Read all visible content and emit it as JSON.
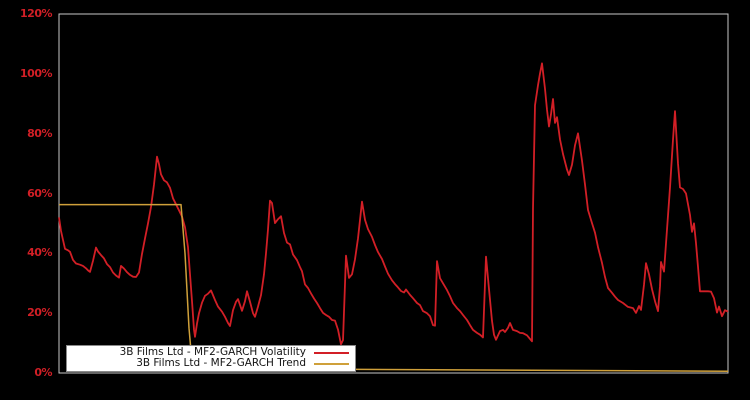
{
  "figure": {
    "background_color": "#000000",
    "plot_border_color": "#c8c8c8"
  },
  "y_axis": {
    "label_color": "#d21f26",
    "tick_labels": [
      "0%",
      "20%",
      "40%",
      "60%",
      "80%",
      "100%",
      "120%"
    ],
    "tick_values": [
      0,
      20,
      40,
      60,
      80,
      100,
      120
    ]
  },
  "legend": {
    "items": [
      {
        "label": "3B Films Ltd - MF2-GARCH Volatility",
        "color": "#d21f26"
      },
      {
        "label": "3B Films Ltd - MF2-GARCH Trend",
        "color": "#cfa03a"
      }
    ]
  },
  "chart_data": {
    "type": "line",
    "title": "",
    "xlabel": "",
    "ylabel": "",
    "ylim": [
      0,
      120
    ],
    "y_unit": "percent",
    "x_axis_labels_visible": false,
    "grid": false,
    "legend_position": "bottom-left",
    "x_units": "pixel position along unlabeled time axis (59 = left edge, 728 = right edge)",
    "series": [
      {
        "name": "3B Films Ltd - MF2-GARCH Volatility",
        "color": "#d21f26",
        "points": [
          [
            59,
            52
          ],
          [
            61,
            47.5
          ],
          [
            63,
            44.5
          ],
          [
            65,
            41.5
          ],
          [
            68,
            41
          ],
          [
            70,
            40.5
          ],
          [
            73,
            37.8
          ],
          [
            76,
            36.6
          ],
          [
            80,
            36.2
          ],
          [
            83,
            35.8
          ],
          [
            86,
            35
          ],
          [
            88,
            34.3
          ],
          [
            90,
            33.8
          ],
          [
            93,
            37.5
          ],
          [
            96,
            41.9
          ],
          [
            98,
            40.6
          ],
          [
            101,
            39.4
          ],
          [
            104,
            38.3
          ],
          [
            107,
            36.4
          ],
          [
            110,
            35.4
          ],
          [
            113,
            33.6
          ],
          [
            116,
            32.6
          ],
          [
            119,
            31.9
          ],
          [
            121,
            35.8
          ],
          [
            124,
            34.9
          ],
          [
            127,
            33.7
          ],
          [
            130,
            32.8
          ],
          [
            133,
            32.2
          ],
          [
            136,
            32.1
          ],
          [
            139,
            33.6
          ],
          [
            142,
            39.8
          ],
          [
            145,
            45
          ],
          [
            148,
            50
          ],
          [
            151,
            55.5
          ],
          [
            154,
            63
          ],
          [
            157,
            72.3
          ],
          [
            159,
            69.8
          ],
          [
            161,
            66.4
          ],
          [
            164,
            64.4
          ],
          [
            167,
            63.7
          ],
          [
            170,
            61.9
          ],
          [
            173,
            58.4
          ],
          [
            176,
            56.4
          ],
          [
            179,
            54.4
          ],
          [
            182,
            52.3
          ],
          [
            185,
            48.7
          ],
          [
            188,
            42
          ],
          [
            190,
            33
          ],
          [
            192,
            24
          ],
          [
            194,
            14.5
          ],
          [
            195,
            12.1
          ],
          [
            197,
            16.5
          ],
          [
            199,
            20
          ],
          [
            202,
            23.5
          ],
          [
            205,
            25.8
          ],
          [
            208,
            26.5
          ],
          [
            211,
            27.6
          ],
          [
            215,
            24.4
          ],
          [
            218,
            22.2
          ],
          [
            222,
            20.5
          ],
          [
            225,
            18.8
          ],
          [
            228,
            16.7
          ],
          [
            230,
            15.7
          ],
          [
            233,
            21
          ],
          [
            236,
            23.8
          ],
          [
            238,
            24.7
          ],
          [
            242,
            20.8
          ],
          [
            245,
            24
          ],
          [
            247,
            27.3
          ],
          [
            250,
            23.8
          ],
          [
            253,
            20
          ],
          [
            255,
            18.8
          ],
          [
            258,
            22.2
          ],
          [
            261,
            26
          ],
          [
            264,
            33
          ],
          [
            266,
            40
          ],
          [
            268,
            48
          ],
          [
            270,
            57.6
          ],
          [
            272,
            56.8
          ],
          [
            275,
            50.1
          ],
          [
            278,
            51.4
          ],
          [
            281,
            52.4
          ],
          [
            284,
            46.8
          ],
          [
            287,
            43.6
          ],
          [
            290,
            43
          ],
          [
            293,
            39.6
          ],
          [
            297,
            37.7
          ],
          [
            300,
            35.4
          ],
          [
            302,
            34
          ],
          [
            305,
            29.6
          ],
          [
            308,
            28.4
          ],
          [
            311,
            26.6
          ],
          [
            314,
            24.9
          ],
          [
            317,
            23.4
          ],
          [
            320,
            21.7
          ],
          [
            323,
            20.1
          ],
          [
            326,
            19.4
          ],
          [
            329,
            18.8
          ],
          [
            332,
            17.7
          ],
          [
            335,
            17.5
          ],
          [
            338,
            14.5
          ],
          [
            341,
            9.6
          ],
          [
            343,
            11
          ],
          [
            346,
            39.2
          ],
          [
            349,
            31.8
          ],
          [
            352,
            33
          ],
          [
            355,
            38
          ],
          [
            358,
            45
          ],
          [
            362,
            57.3
          ],
          [
            365,
            51.2
          ],
          [
            368,
            48.1
          ],
          [
            372,
            45.5
          ],
          [
            375,
            42.8
          ],
          [
            378,
            40.4
          ],
          [
            382,
            38.1
          ],
          [
            385,
            35.6
          ],
          [
            388,
            33.2
          ],
          [
            392,
            31
          ],
          [
            395,
            29.7
          ],
          [
            398,
            28.6
          ],
          [
            401,
            27.4
          ],
          [
            404,
            26.9
          ],
          [
            406,
            27.9
          ],
          [
            410,
            26.1
          ],
          [
            413,
            25
          ],
          [
            417,
            23.4
          ],
          [
            420,
            22.7
          ],
          [
            423,
            20.7
          ],
          [
            427,
            20
          ],
          [
            430,
            19
          ],
          [
            433,
            16
          ],
          [
            435,
            15.8
          ],
          [
            437,
            37.4
          ],
          [
            440,
            31.7
          ],
          [
            443,
            30
          ],
          [
            447,
            27.7
          ],
          [
            450,
            25.7
          ],
          [
            453,
            23.4
          ],
          [
            457,
            21.7
          ],
          [
            460,
            20.7
          ],
          [
            463,
            19.4
          ],
          [
            467,
            17.7
          ],
          [
            470,
            16
          ],
          [
            473,
            14.4
          ],
          [
            477,
            13.4
          ],
          [
            480,
            12.8
          ],
          [
            483,
            11.9
          ],
          [
            486,
            38.9
          ],
          [
            489,
            28
          ],
          [
            492,
            17.4
          ],
          [
            494,
            12.8
          ],
          [
            496,
            11.1
          ],
          [
            500,
            14
          ],
          [
            503,
            14.4
          ],
          [
            505,
            13.7
          ],
          [
            508,
            15.1
          ],
          [
            510,
            16.7
          ],
          [
            513,
            14.4
          ],
          [
            517,
            14
          ],
          [
            520,
            13.4
          ],
          [
            523,
            13.3
          ],
          [
            527,
            12.6
          ],
          [
            530,
            11.4
          ],
          [
            532,
            10.6
          ],
          [
            533,
            55
          ],
          [
            535,
            89.5
          ],
          [
            538,
            96.2
          ],
          [
            540,
            100.1
          ],
          [
            542,
            103.5
          ],
          [
            545,
            95
          ],
          [
            547,
            88
          ],
          [
            549,
            82.4
          ],
          [
            551,
            86.5
          ],
          [
            553,
            91.6
          ],
          [
            555,
            83.6
          ],
          [
            557,
            85.5
          ],
          [
            560,
            78.1
          ],
          [
            563,
            73.2
          ],
          [
            567,
            68
          ],
          [
            569,
            66.2
          ],
          [
            572,
            69.6
          ],
          [
            575,
            76.1
          ],
          [
            578,
            80.1
          ],
          [
            582,
            71
          ],
          [
            585,
            63
          ],
          [
            588,
            54.5
          ],
          [
            592,
            50.1
          ],
          [
            595,
            46.9
          ],
          [
            598,
            42.1
          ],
          [
            602,
            36.8
          ],
          [
            605,
            32.1
          ],
          [
            608,
            28.4
          ],
          [
            612,
            26.8
          ],
          [
            615,
            25.5
          ],
          [
            618,
            24.4
          ],
          [
            623,
            23.4
          ],
          [
            628,
            22.1
          ],
          [
            633,
            21.7
          ],
          [
            636,
            20.1
          ],
          [
            639,
            22.4
          ],
          [
            641,
            21.1
          ],
          [
            644,
            29.5
          ],
          [
            646,
            36.7
          ],
          [
            649,
            33
          ],
          [
            652,
            28
          ],
          [
            655,
            24
          ],
          [
            658,
            20.7
          ],
          [
            660,
            29
          ],
          [
            661,
            37.1
          ],
          [
            664,
            33.9
          ],
          [
            667,
            48
          ],
          [
            670,
            62
          ],
          [
            673,
            78
          ],
          [
            675,
            87.5
          ],
          [
            678,
            70
          ],
          [
            680,
            62
          ],
          [
            683,
            61.5
          ],
          [
            686,
            60
          ],
          [
            690,
            52.8
          ],
          [
            692,
            47.2
          ],
          [
            694,
            50
          ],
          [
            696,
            43.4
          ],
          [
            698,
            35.5
          ],
          [
            700,
            27.3
          ],
          [
            704,
            27.3
          ],
          [
            708,
            27.3
          ],
          [
            711,
            27.2
          ],
          [
            714,
            25
          ],
          [
            717,
            20.2
          ],
          [
            719,
            22.2
          ],
          [
            722,
            19
          ],
          [
            725,
            21
          ],
          [
            728,
            20.5
          ]
        ]
      },
      {
        "name": "3B Films Ltd - MF2-GARCH Trend",
        "color": "#cfa03a",
        "points": [
          [
            59,
            56.3
          ],
          [
            181,
            56.3
          ],
          [
            185,
            40
          ],
          [
            189,
            15
          ],
          [
            192,
            3.5
          ],
          [
            196,
            1.8
          ],
          [
            360,
            1.2
          ],
          [
            728,
            0.6
          ]
        ]
      }
    ]
  }
}
